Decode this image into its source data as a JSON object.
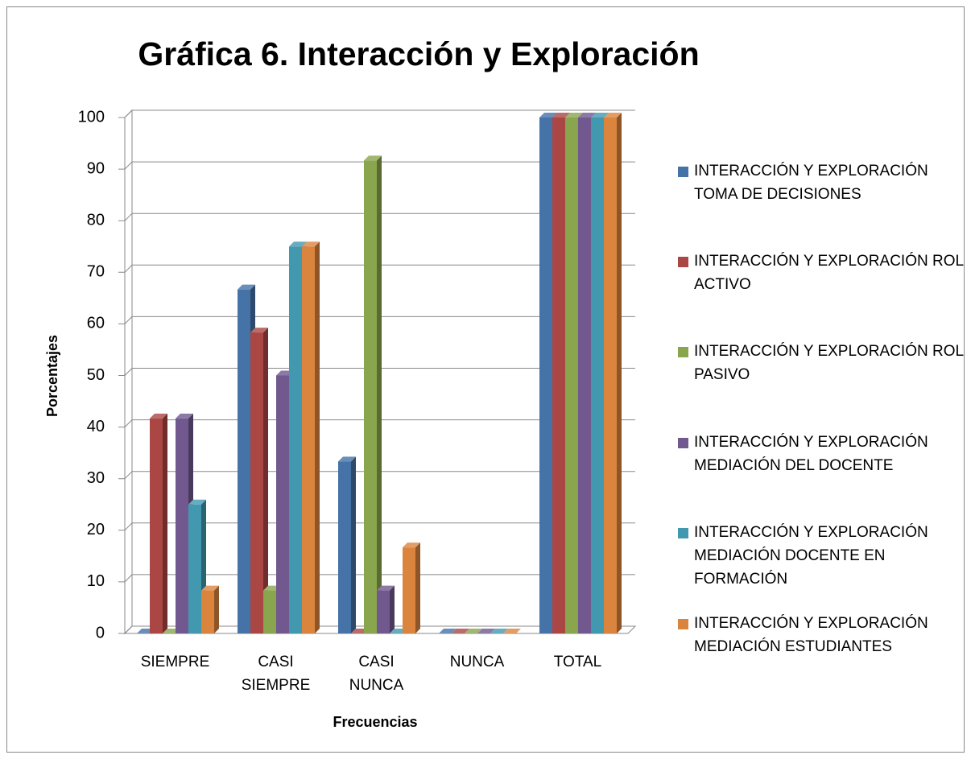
{
  "chart_data": {
    "type": "bar3d",
    "title": "Gráfica 6. Interacción y Exploración",
    "x_label": "Frecuencias",
    "y_label": "Porcentajes",
    "categories": [
      "SIEMPRE",
      "CASI SIEMPRE",
      "CASI NUNCA",
      "NUNCA",
      "TOTAL"
    ],
    "series": [
      {
        "name": "INTERACCIÓN Y EXPLORACIÓN TOMA DE  DECISIONES",
        "color": "#4572a7",
        "values": [
          0,
          66.67,
          33.33,
          0,
          100
        ]
      },
      {
        "name": "INTERACCIÓN Y EXPLORACIÓN ROL ACTIVO",
        "color": "#aa4643",
        "values": [
          41.67,
          58.33,
          0,
          0,
          100
        ]
      },
      {
        "name": "INTERACCIÓN Y EXPLORACIÓN ROL PASIVO",
        "color": "#89a54e",
        "values": [
          0,
          8.33,
          91.67,
          0,
          100
        ]
      },
      {
        "name": "INTERACCIÓN Y EXPLORACIÓN MEDIACIÓN DEL DOCENTE",
        "color": "#71588f",
        "values": [
          41.67,
          50,
          8.33,
          0,
          100
        ]
      },
      {
        "name": "INTERACCIÓN Y EXPLORACIÓN MEDIACIÓN DOCENTE EN FORMACIÓN",
        "color": "#4198af",
        "values": [
          25,
          75,
          0,
          0,
          100
        ]
      },
      {
        "name": "INTERACCIÓN Y EXPLORACIÓN MEDIACIÓN ESTUDIANTES",
        "color": "#db843d",
        "values": [
          8.33,
          75,
          16.67,
          0,
          100
        ]
      }
    ],
    "ylim": [
      0,
      100
    ],
    "yticks": [
      0,
      10,
      20,
      30,
      40,
      50,
      60,
      70,
      80,
      90,
      100
    ],
    "grid": true,
    "legend": "right"
  }
}
